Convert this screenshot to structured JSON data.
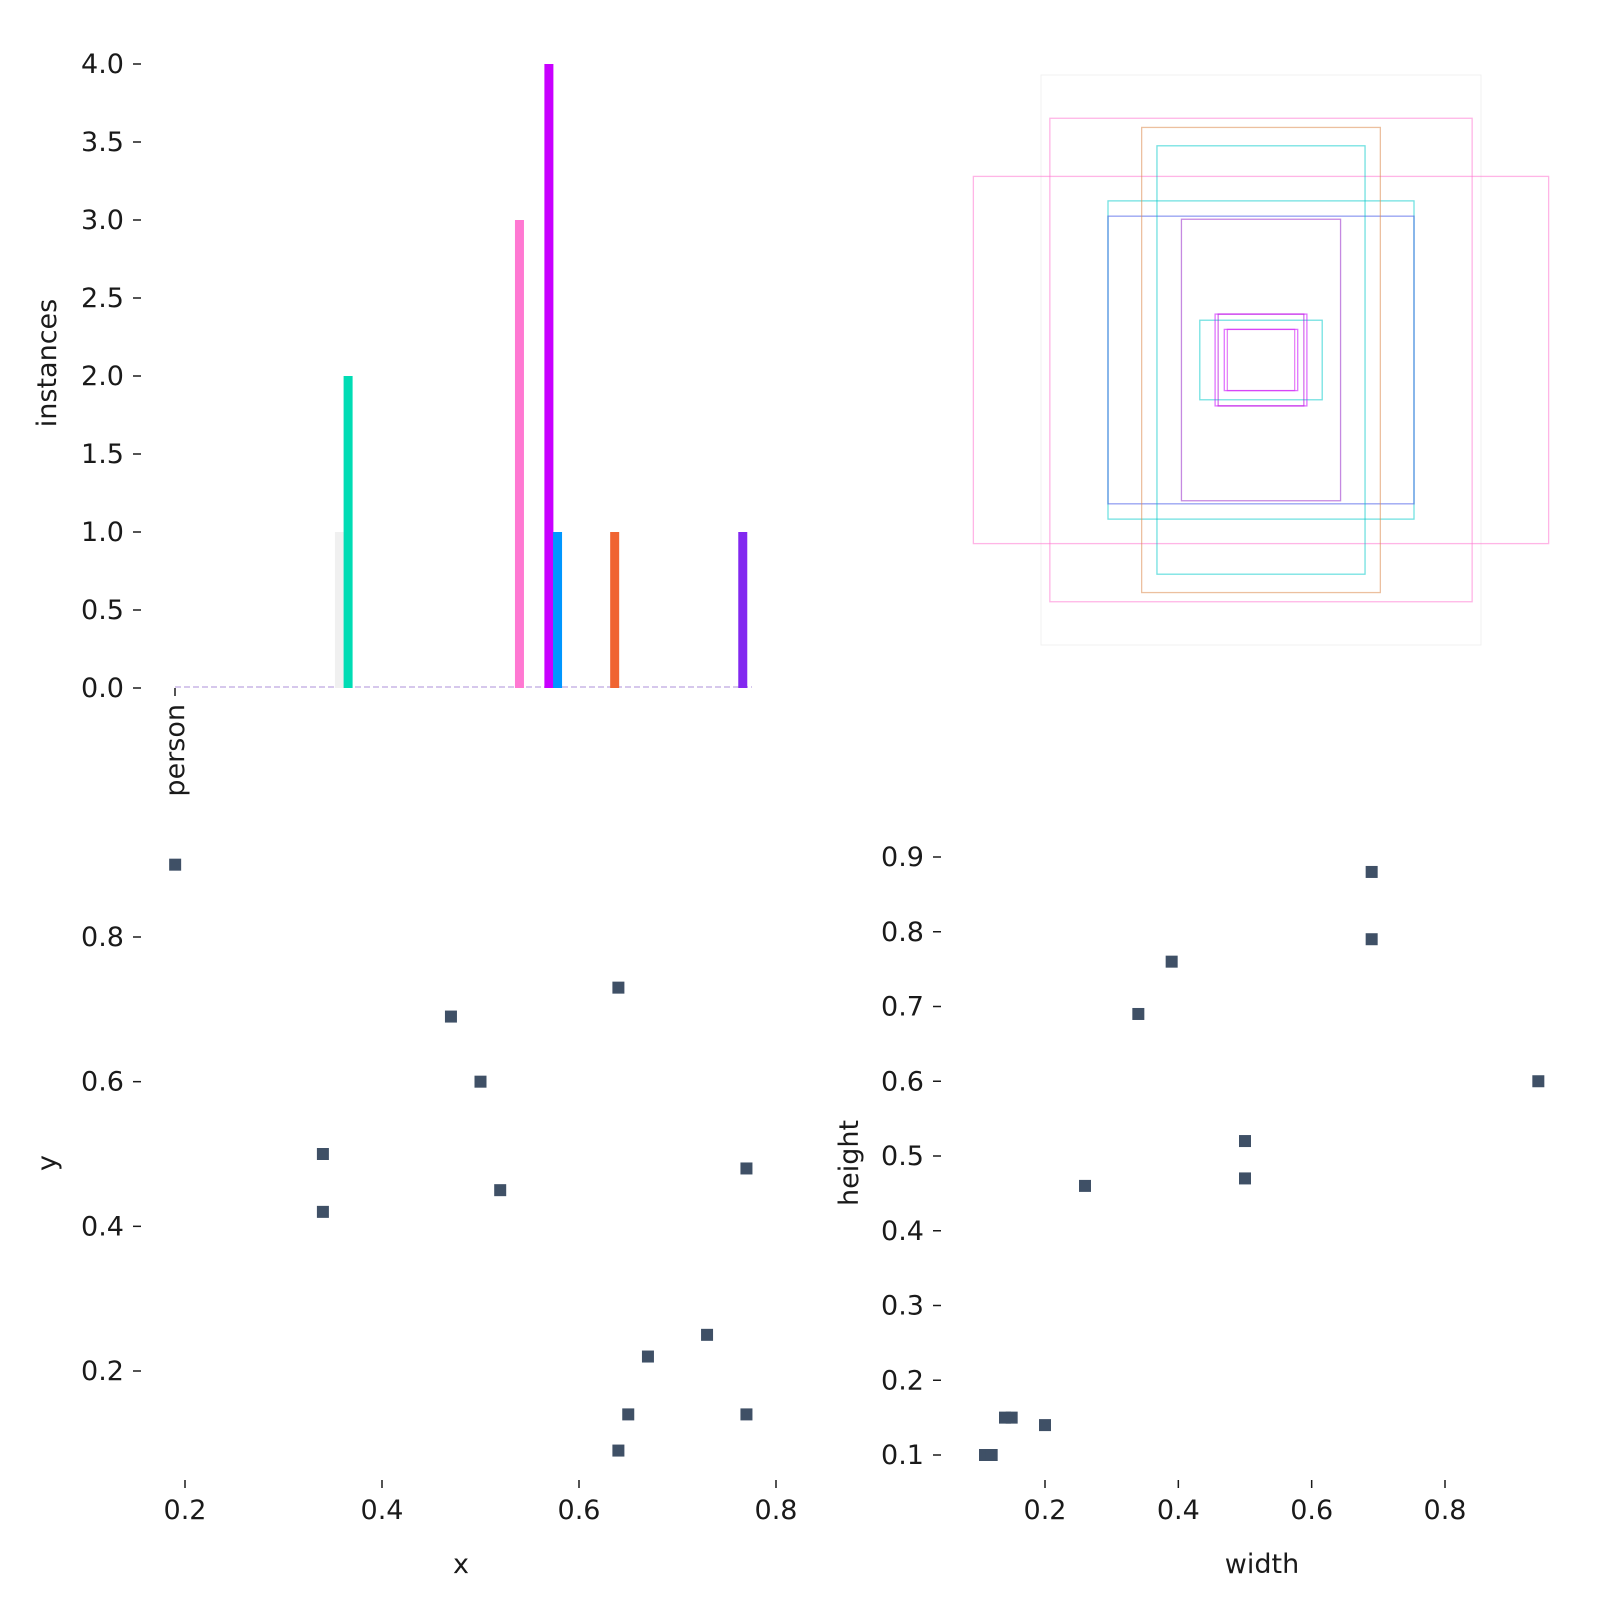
{
  "chart_data": [
    {
      "type": "bar",
      "ylabel": "instances",
      "categories": [
        "person"
      ],
      "ylim": [
        0,
        4.0
      ],
      "yticks": [
        "0.0",
        "0.5",
        "1.0",
        "1.5",
        "2.0",
        "2.5",
        "3.0",
        "3.5",
        "4.0"
      ],
      "bars": [
        {
          "x": 0.285,
          "value": 1,
          "color": "#f0f0f0"
        },
        {
          "x": 0.3,
          "value": 2,
          "color": "#00dcb4"
        },
        {
          "x": 0.597,
          "value": 3,
          "color": "#ff78d2"
        },
        {
          "x": 0.648,
          "value": 4,
          "color": "#c800ff"
        },
        {
          "x": 0.663,
          "value": 1,
          "color": "#0096ff"
        },
        {
          "x": 0.762,
          "value": 1,
          "color": "#f06432"
        },
        {
          "x": 0.984,
          "value": 1,
          "color": "#8228f0"
        }
      ]
    },
    {
      "type": "boxes",
      "boxes": [
        {
          "w": 0.94,
          "h": 0.6,
          "color": "#ff78d2"
        },
        {
          "w": 0.69,
          "h": 0.79,
          "color": "#ff78d2"
        },
        {
          "w": 0.5,
          "h": 0.52,
          "color": "#00c8c8"
        },
        {
          "w": 0.5,
          "h": 0.47,
          "color": "#3c50e6"
        },
        {
          "w": 0.39,
          "h": 0.76,
          "color": "#dc8c50"
        },
        {
          "w": 0.34,
          "h": 0.7,
          "color": "#00c8c8"
        },
        {
          "w": 0.26,
          "h": 0.46,
          "color": "#9628c8"
        },
        {
          "w": 0.2,
          "h": 0.13,
          "color": "#00c8c8"
        },
        {
          "w": 0.15,
          "h": 0.15,
          "color": "#c800ff"
        },
        {
          "w": 0.14,
          "h": 0.15,
          "color": "#b400dc"
        },
        {
          "w": 0.12,
          "h": 0.1,
          "color": "#c800ff"
        },
        {
          "w": 0.11,
          "h": 0.1,
          "color": "#d220f0"
        }
      ]
    },
    {
      "type": "scatter",
      "xlabel": "x",
      "ylabel": "y",
      "xticks": [
        "0.2",
        "0.4",
        "0.6",
        "0.8"
      ],
      "yticks": [
        "0.2",
        "0.4",
        "0.6",
        "0.8"
      ],
      "color": "#3f5066",
      "points": [
        {
          "x": 0.19,
          "y": 0.9
        },
        {
          "x": 0.34,
          "y": 0.5
        },
        {
          "x": 0.34,
          "y": 0.42
        },
        {
          "x": 0.47,
          "y": 0.69
        },
        {
          "x": 0.5,
          "y": 0.6
        },
        {
          "x": 0.52,
          "y": 0.45
        },
        {
          "x": 0.64,
          "y": 0.73
        },
        {
          "x": 0.64,
          "y": 0.09
        },
        {
          "x": 0.65,
          "y": 0.14
        },
        {
          "x": 0.67,
          "y": 0.22
        },
        {
          "x": 0.73,
          "y": 0.25
        },
        {
          "x": 0.77,
          "y": 0.48
        },
        {
          "x": 0.77,
          "y": 0.14
        }
      ]
    },
    {
      "type": "scatter",
      "xlabel": "width",
      "ylabel": "height",
      "xticks": [
        "0.2",
        "0.4",
        "0.6",
        "0.8"
      ],
      "yticks": [
        "0.1",
        "0.2",
        "0.3",
        "0.4",
        "0.5",
        "0.6",
        "0.7",
        "0.8",
        "0.9"
      ],
      "color": "#3f5066",
      "points": [
        {
          "x": 0.69,
          "y": 0.88
        },
        {
          "x": 0.69,
          "y": 0.79
        },
        {
          "x": 0.39,
          "y": 0.76
        },
        {
          "x": 0.34,
          "y": 0.69
        },
        {
          "x": 0.94,
          "y": 0.6
        },
        {
          "x": 0.5,
          "y": 0.52
        },
        {
          "x": 0.5,
          "y": 0.47
        },
        {
          "x": 0.26,
          "y": 0.46
        },
        {
          "x": 0.15,
          "y": 0.15
        },
        {
          "x": 0.14,
          "y": 0.15
        },
        {
          "x": 0.2,
          "y": 0.14
        },
        {
          "x": 0.11,
          "y": 0.1
        },
        {
          "x": 0.12,
          "y": 0.1
        }
      ]
    }
  ]
}
